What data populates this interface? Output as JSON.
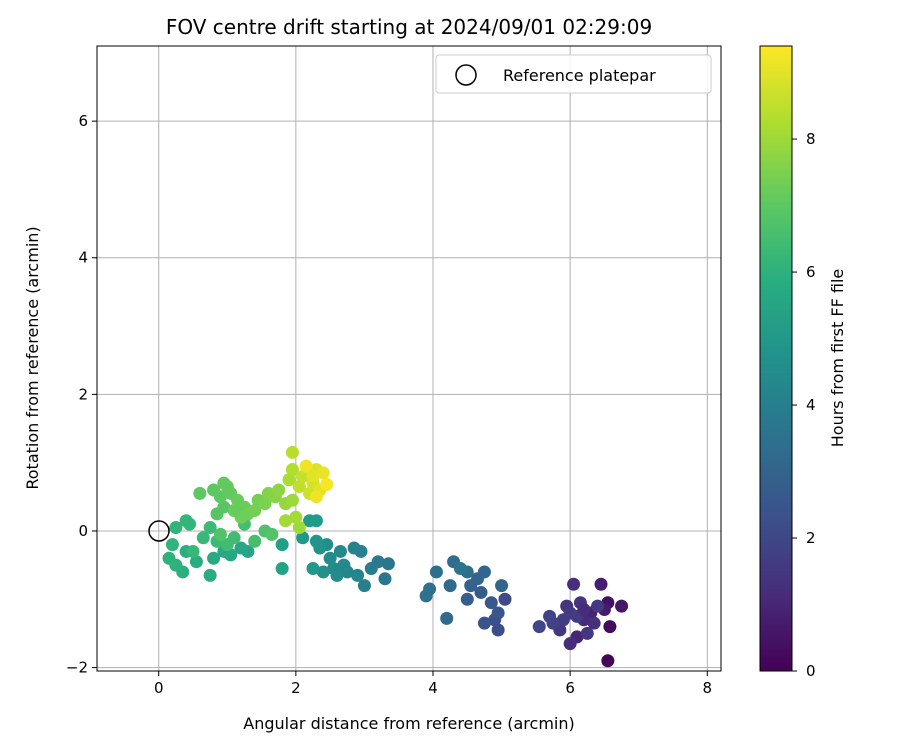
{
  "chart_data": {
    "type": "scatter",
    "title": "FOV centre drift starting at 2024/09/01 02:29:09",
    "xlabel": "Angular distance from reference (arcmin)",
    "ylabel": "Rotation from reference (arcmin)",
    "xlim": [
      -0.9,
      8.2
    ],
    "ylim": [
      -2.05,
      7.1
    ],
    "xticks": [
      0,
      2,
      4,
      6,
      8
    ],
    "yticks": [
      -2,
      0,
      2,
      4,
      6
    ],
    "grid": true,
    "legend": {
      "placement": "top-right",
      "entries": [
        "Reference platepar"
      ]
    },
    "reference_point": {
      "x": 0,
      "y": 0,
      "label": "Reference platepar"
    },
    "colorbar": {
      "label": "Hours from first FF file",
      "range": [
        0,
        9.4
      ],
      "ticks": [
        0,
        2,
        4,
        6,
        8
      ],
      "colormap": "viridis"
    },
    "points": [
      {
        "x": 6.55,
        "y": -1.9,
        "t": 0.1
      },
      {
        "x": 6.58,
        "y": -1.4,
        "t": 0.3
      },
      {
        "x": 6.55,
        "y": -1.05,
        "t": 0.4
      },
      {
        "x": 6.75,
        "y": -1.1,
        "t": 0.6
      },
      {
        "x": 6.5,
        "y": -1.15,
        "t": 0.7
      },
      {
        "x": 6.45,
        "y": -0.78,
        "t": 0.8
      },
      {
        "x": 6.3,
        "y": -1.2,
        "t": 0.9
      },
      {
        "x": 6.1,
        "y": -1.55,
        "t": 1.0
      },
      {
        "x": 6.2,
        "y": -1.3,
        "t": 1.1
      },
      {
        "x": 6.0,
        "y": -1.65,
        "t": 1.2
      },
      {
        "x": 6.35,
        "y": -1.35,
        "t": 1.3
      },
      {
        "x": 6.05,
        "y": -0.78,
        "t": 1.3
      },
      {
        "x": 5.95,
        "y": -1.1,
        "t": 1.4
      },
      {
        "x": 6.15,
        "y": -1.05,
        "t": 1.4
      },
      {
        "x": 6.25,
        "y": -1.5,
        "t": 1.5
      },
      {
        "x": 5.85,
        "y": -1.45,
        "t": 1.5
      },
      {
        "x": 6.0,
        "y": -1.2,
        "t": 1.6
      },
      {
        "x": 6.4,
        "y": -1.1,
        "t": 1.6
      },
      {
        "x": 5.9,
        "y": -1.3,
        "t": 1.7
      },
      {
        "x": 6.1,
        "y": -1.25,
        "t": 1.7
      },
      {
        "x": 5.75,
        "y": -1.35,
        "t": 1.8
      },
      {
        "x": 5.7,
        "y": -1.25,
        "t": 1.9
      },
      {
        "x": 5.55,
        "y": -1.4,
        "t": 2.0
      },
      {
        "x": 6.2,
        "y": -1.15,
        "t": 1.2
      },
      {
        "x": 5.05,
        "y": -1.0,
        "t": 2.1
      },
      {
        "x": 4.95,
        "y": -1.45,
        "t": 2.2
      },
      {
        "x": 4.9,
        "y": -1.3,
        "t": 2.3
      },
      {
        "x": 4.75,
        "y": -1.35,
        "t": 2.4
      },
      {
        "x": 4.95,
        "y": -1.2,
        "t": 2.5
      },
      {
        "x": 4.85,
        "y": -1.05,
        "t": 2.6
      },
      {
        "x": 4.7,
        "y": -0.9,
        "t": 2.7
      },
      {
        "x": 4.5,
        "y": -1.0,
        "t": 2.8
      },
      {
        "x": 4.55,
        "y": -0.8,
        "t": 2.9
      },
      {
        "x": 4.65,
        "y": -0.7,
        "t": 3.0
      },
      {
        "x": 5.0,
        "y": -0.8,
        "t": 3.0
      },
      {
        "x": 4.75,
        "y": -0.6,
        "t": 3.1
      },
      {
        "x": 4.25,
        "y": -0.8,
        "t": 3.2
      },
      {
        "x": 4.2,
        "y": -1.28,
        "t": 3.2
      },
      {
        "x": 4.3,
        "y": -0.45,
        "t": 3.3
      },
      {
        "x": 4.5,
        "y": -0.6,
        "t": 3.4
      },
      {
        "x": 4.05,
        "y": -0.6,
        "t": 3.4
      },
      {
        "x": 3.95,
        "y": -0.85,
        "t": 3.5
      },
      {
        "x": 3.9,
        "y": -0.95,
        "t": 3.5
      },
      {
        "x": 4.4,
        "y": -0.55,
        "t": 3.6
      },
      {
        "x": 3.3,
        "y": -0.7,
        "t": 3.7
      },
      {
        "x": 3.35,
        "y": -0.48,
        "t": 3.7
      },
      {
        "x": 3.2,
        "y": -0.45,
        "t": 3.8
      },
      {
        "x": 3.1,
        "y": -0.55,
        "t": 3.9
      },
      {
        "x": 3.0,
        "y": -0.8,
        "t": 4.0
      },
      {
        "x": 2.95,
        "y": -0.3,
        "t": 4.1
      },
      {
        "x": 2.85,
        "y": -0.25,
        "t": 4.2
      },
      {
        "x": 2.9,
        "y": -0.65,
        "t": 4.3
      },
      {
        "x": 2.75,
        "y": -0.6,
        "t": 4.3
      },
      {
        "x": 2.65,
        "y": -0.3,
        "t": 4.4
      },
      {
        "x": 2.55,
        "y": -0.55,
        "t": 4.5
      },
      {
        "x": 2.5,
        "y": -0.4,
        "t": 4.6
      },
      {
        "x": 2.45,
        "y": -0.2,
        "t": 4.6
      },
      {
        "x": 2.4,
        "y": -0.6,
        "t": 4.7
      },
      {
        "x": 2.35,
        "y": -0.25,
        "t": 4.8
      },
      {
        "x": 2.3,
        "y": -0.15,
        "t": 4.9
      },
      {
        "x": 2.6,
        "y": -0.65,
        "t": 4.5
      },
      {
        "x": 2.7,
        "y": -0.5,
        "t": 4.4
      },
      {
        "x": 2.25,
        "y": -0.55,
        "t": 5.0
      },
      {
        "x": 2.1,
        "y": -0.1,
        "t": 5.0
      },
      {
        "x": 2.2,
        "y": 0.15,
        "t": 5.1
      },
      {
        "x": 2.3,
        "y": 0.15,
        "t": 5.2
      },
      {
        "x": 1.8,
        "y": -0.2,
        "t": 5.3
      },
      {
        "x": 1.8,
        "y": -0.55,
        "t": 5.4
      },
      {
        "x": 1.3,
        "y": -0.3,
        "t": 5.5
      },
      {
        "x": 1.2,
        "y": -0.25,
        "t": 5.6
      },
      {
        "x": 1.05,
        "y": -0.35,
        "t": 5.6
      },
      {
        "x": 0.95,
        "y": -0.3,
        "t": 5.7
      },
      {
        "x": 0.8,
        "y": -0.4,
        "t": 5.7
      },
      {
        "x": 0.75,
        "y": -0.65,
        "t": 5.8
      },
      {
        "x": 0.55,
        "y": -0.45,
        "t": 5.8
      },
      {
        "x": 0.4,
        "y": -0.3,
        "t": 5.9
      },
      {
        "x": 0.35,
        "y": -0.6,
        "t": 5.9
      },
      {
        "x": 0.25,
        "y": -0.5,
        "t": 6.0
      },
      {
        "x": 0.15,
        "y": -0.4,
        "t": 6.0
      },
      {
        "x": 0.2,
        "y": -0.2,
        "t": 6.1
      },
      {
        "x": 0.25,
        "y": 0.05,
        "t": 6.1
      },
      {
        "x": 0.45,
        "y": 0.1,
        "t": 6.2
      },
      {
        "x": 0.4,
        "y": 0.15,
        "t": 6.2
      },
      {
        "x": 0.5,
        "y": -0.3,
        "t": 6.3
      },
      {
        "x": 0.65,
        "y": -0.1,
        "t": 6.3
      },
      {
        "x": 0.75,
        "y": 0.05,
        "t": 6.4
      },
      {
        "x": 0.85,
        "y": -0.15,
        "t": 6.4
      },
      {
        "x": 1.0,
        "y": -0.2,
        "t": 6.5
      },
      {
        "x": 1.1,
        "y": -0.1,
        "t": 6.5
      },
      {
        "x": 1.25,
        "y": 0.1,
        "t": 6.6
      },
      {
        "x": 1.4,
        "y": -0.15,
        "t": 6.6
      },
      {
        "x": 1.55,
        "y": 0.0,
        "t": 6.7
      },
      {
        "x": 1.65,
        "y": -0.05,
        "t": 6.8
      },
      {
        "x": 0.9,
        "y": -0.05,
        "t": 6.8
      },
      {
        "x": 0.85,
        "y": 0.25,
        "t": 6.9
      },
      {
        "x": 0.95,
        "y": 0.35,
        "t": 6.9
      },
      {
        "x": 0.9,
        "y": 0.5,
        "t": 7.0
      },
      {
        "x": 0.8,
        "y": 0.6,
        "t": 7.0
      },
      {
        "x": 1.0,
        "y": 0.65,
        "t": 7.1
      },
      {
        "x": 1.05,
        "y": 0.55,
        "t": 7.1
      },
      {
        "x": 1.15,
        "y": 0.45,
        "t": 7.2
      },
      {
        "x": 1.25,
        "y": 0.35,
        "t": 7.2
      },
      {
        "x": 1.3,
        "y": 0.25,
        "t": 7.3
      },
      {
        "x": 1.2,
        "y": 0.2,
        "t": 7.3
      },
      {
        "x": 1.4,
        "y": 0.3,
        "t": 7.4
      },
      {
        "x": 1.45,
        "y": 0.45,
        "t": 7.4
      },
      {
        "x": 1.55,
        "y": 0.4,
        "t": 7.5
      },
      {
        "x": 0.6,
        "y": 0.55,
        "t": 7.0
      },
      {
        "x": 0.95,
        "y": 0.7,
        "t": 7.1
      },
      {
        "x": 1.1,
        "y": 0.3,
        "t": 7.2
      },
      {
        "x": 1.6,
        "y": 0.55,
        "t": 7.6
      },
      {
        "x": 1.7,
        "y": 0.5,
        "t": 7.7
      },
      {
        "x": 1.75,
        "y": 0.6,
        "t": 7.8
      },
      {
        "x": 1.85,
        "y": 0.4,
        "t": 7.9
      },
      {
        "x": 1.95,
        "y": 0.45,
        "t": 8.0
      },
      {
        "x": 2.05,
        "y": 0.05,
        "t": 8.0
      },
      {
        "x": 2.0,
        "y": 0.2,
        "t": 8.1
      },
      {
        "x": 1.85,
        "y": 0.15,
        "t": 8.1
      },
      {
        "x": 1.9,
        "y": 0.75,
        "t": 8.2
      },
      {
        "x": 1.95,
        "y": 0.9,
        "t": 8.3
      },
      {
        "x": 1.95,
        "y": 1.15,
        "t": 8.4
      },
      {
        "x": 2.05,
        "y": 0.65,
        "t": 8.5
      },
      {
        "x": 2.1,
        "y": 0.8,
        "t": 8.6
      },
      {
        "x": 2.2,
        "y": 0.55,
        "t": 8.7
      },
      {
        "x": 2.25,
        "y": 0.7,
        "t": 8.8
      },
      {
        "x": 2.3,
        "y": 0.9,
        "t": 8.9
      },
      {
        "x": 2.35,
        "y": 0.6,
        "t": 9.0
      },
      {
        "x": 2.4,
        "y": 0.85,
        "t": 9.1
      },
      {
        "x": 2.3,
        "y": 0.5,
        "t": 9.2
      },
      {
        "x": 2.45,
        "y": 0.68,
        "t": 9.3
      },
      {
        "x": 2.15,
        "y": 0.95,
        "t": 9.2
      },
      {
        "x": 2.25,
        "y": 0.8,
        "t": 9.0
      }
    ]
  }
}
